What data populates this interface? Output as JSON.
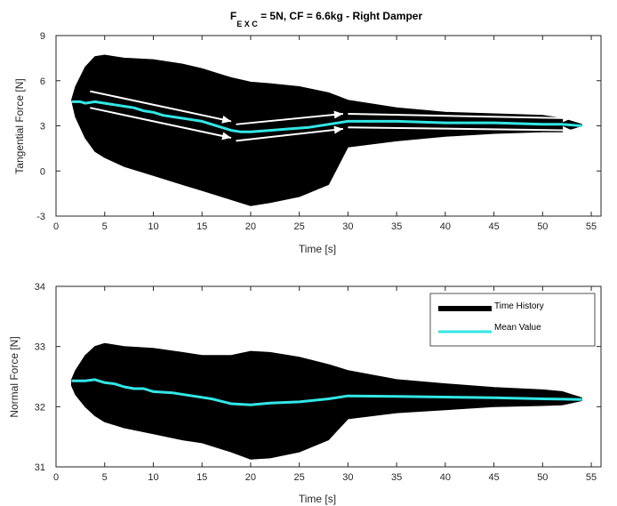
{
  "chart_data": [
    {
      "type": "line",
      "title_main": "F",
      "title_subscript": "E X C",
      "title_rest": " = 5N, CF = 6.6kg - Right Damper",
      "xlabel": "Time [s]",
      "ylabel": "Tangential Force [N]",
      "xlim": [
        0,
        56
      ],
      "ylim": [
        -3,
        9
      ],
      "xticks": [
        0,
        5,
        10,
        15,
        20,
        25,
        30,
        35,
        40,
        45,
        50,
        55
      ],
      "yticks": [
        -3,
        0,
        3,
        6,
        9
      ],
      "grid": false,
      "series": [
        {
          "role": "time-history-envelope",
          "color": "#000000",
          "x": [
            1.6,
            2.0,
            3.0,
            4.0,
            5.0,
            7.0,
            10.0,
            13.0,
            15.0,
            18.0,
            20.0,
            22.0,
            25.0,
            28.0,
            30.0,
            35.0,
            40.0,
            45.0,
            50.0,
            52.0,
            54.0
          ],
          "upper": [
            4.7,
            5.6,
            6.9,
            7.6,
            7.7,
            7.5,
            7.4,
            7.1,
            6.8,
            6.2,
            5.9,
            5.8,
            5.6,
            5.2,
            4.7,
            4.2,
            3.9,
            3.8,
            3.7,
            3.5,
            3.1
          ],
          "lower": [
            4.7,
            3.6,
            2.2,
            1.3,
            0.9,
            0.3,
            -0.3,
            -0.9,
            -1.3,
            -1.9,
            -2.3,
            -2.1,
            -1.7,
            -0.9,
            1.6,
            2.0,
            2.3,
            2.5,
            2.6,
            2.6,
            3.0
          ]
        },
        {
          "role": "mean-value",
          "color": "#33e6e6",
          "x": [
            1.6,
            2.5,
            3.0,
            4.0,
            5.0,
            6.0,
            7.0,
            8.0,
            9.0,
            10.0,
            11.0,
            12.0,
            13.0,
            14.0,
            15.0,
            16.0,
            17.0,
            18.0,
            19.0,
            20.0,
            22.0,
            24.0,
            26.0,
            28.0,
            30.0,
            35.0,
            40.0,
            45.0,
            50.0,
            52.0,
            54.0
          ],
          "y": [
            4.6,
            4.6,
            4.5,
            4.6,
            4.5,
            4.4,
            4.3,
            4.2,
            4.0,
            3.9,
            3.7,
            3.6,
            3.5,
            3.4,
            3.3,
            3.1,
            2.9,
            2.7,
            2.6,
            2.6,
            2.7,
            2.8,
            2.9,
            3.1,
            3.3,
            3.3,
            3.2,
            3.2,
            3.1,
            3.1,
            3.0
          ]
        }
      ],
      "annotations": [
        {
          "type": "arrow",
          "color": "#ffffff",
          "from": [
            3.5,
            5.3
          ],
          "to": [
            18.0,
            3.3
          ]
        },
        {
          "type": "arrow",
          "color": "#ffffff",
          "from": [
            3.5,
            4.2
          ],
          "to": [
            18.0,
            2.2
          ]
        },
        {
          "type": "arrow",
          "color": "#ffffff",
          "from": [
            18.5,
            3.1
          ],
          "to": [
            29.5,
            3.8
          ]
        },
        {
          "type": "arrow",
          "color": "#ffffff",
          "from": [
            18.5,
            2.0
          ],
          "to": [
            29.5,
            2.8
          ]
        },
        {
          "type": "arrow",
          "color": "#ffffff",
          "from": [
            30.0,
            3.8
          ],
          "to": [
            53.0,
            3.5
          ]
        },
        {
          "type": "arrow",
          "color": "#ffffff",
          "from": [
            30.0,
            2.9
          ],
          "to": [
            53.0,
            2.7
          ]
        }
      ]
    },
    {
      "type": "line",
      "xlabel": "Time [s]",
      "ylabel": "Normal Force [N]",
      "xlim": [
        0,
        56
      ],
      "ylim": [
        31,
        34
      ],
      "xticks": [
        0,
        5,
        10,
        15,
        20,
        25,
        30,
        35,
        40,
        45,
        50,
        55
      ],
      "yticks": [
        31,
        32,
        33,
        34
      ],
      "grid": false,
      "legend": {
        "position": "top-right",
        "entries": [
          {
            "label": "Time History",
            "color": "#000000"
          },
          {
            "label": "Mean Value",
            "color": "#33e6e6"
          }
        ]
      },
      "series": [
        {
          "role": "time-history-envelope",
          "color": "#000000",
          "x": [
            1.6,
            2.0,
            3.0,
            4.0,
            5.0,
            7.0,
            10.0,
            13.0,
            15.0,
            18.0,
            20.0,
            22.0,
            25.0,
            28.0,
            30.0,
            35.0,
            40.0,
            45.0,
            50.0,
            52.0,
            54.0
          ],
          "upper": [
            32.45,
            32.6,
            32.85,
            33.0,
            33.05,
            33.0,
            32.97,
            32.9,
            32.85,
            32.85,
            32.92,
            32.9,
            32.82,
            32.7,
            32.6,
            32.45,
            32.38,
            32.32,
            32.28,
            32.25,
            32.15
          ],
          "lower": [
            32.35,
            32.2,
            32.0,
            31.85,
            31.75,
            31.65,
            31.55,
            31.45,
            31.4,
            31.25,
            31.13,
            31.15,
            31.25,
            31.45,
            31.8,
            31.9,
            31.95,
            32.0,
            32.02,
            32.03,
            32.1
          ]
        },
        {
          "role": "mean-value",
          "color": "#33e6e6",
          "x": [
            1.6,
            3.0,
            4.0,
            5.0,
            6.0,
            7.0,
            8.0,
            9.0,
            10.0,
            12.0,
            14.0,
            16.0,
            18.0,
            20.0,
            22.0,
            25.0,
            28.0,
            30.0,
            35.0,
            40.0,
            45.0,
            50.0,
            54.0
          ],
          "y": [
            32.43,
            32.43,
            32.45,
            32.4,
            32.38,
            32.33,
            32.3,
            32.3,
            32.25,
            32.23,
            32.18,
            32.13,
            32.05,
            32.03,
            32.06,
            32.08,
            32.13,
            32.18,
            32.17,
            32.16,
            32.15,
            32.13,
            32.12
          ]
        }
      ]
    }
  ]
}
